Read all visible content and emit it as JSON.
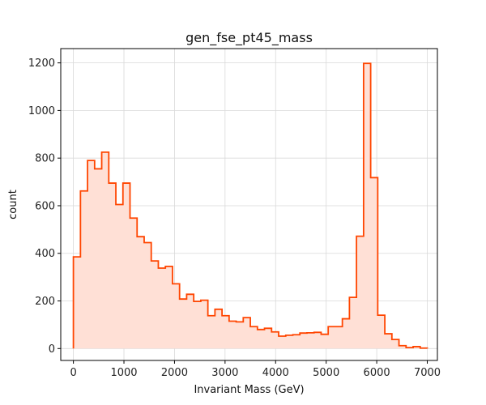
{
  "chart_data": {
    "type": "histogram",
    "title": "gen_fse_pt45_mass",
    "xlabel": "Invariant Mass (GeV)",
    "ylabel": "count",
    "xlim": [
      -250,
      7200
    ],
    "ylim": [
      -50,
      1260
    ],
    "xticks": [
      0,
      1000,
      2000,
      3000,
      4000,
      5000,
      6000,
      7000
    ],
    "yticks": [
      0,
      200,
      400,
      600,
      800,
      1000,
      1200
    ],
    "grid": true,
    "line_color": "#ff4500",
    "fill_color": "#ffe0d6",
    "bin_start": 0,
    "bin_width": 140,
    "counts": [
      385,
      662,
      790,
      755,
      825,
      695,
      605,
      695,
      548,
      470,
      445,
      368,
      338,
      345,
      272,
      208,
      228,
      198,
      203,
      138,
      165,
      138,
      115,
      112,
      130,
      92,
      80,
      85,
      70,
      52,
      56,
      58,
      65,
      66,
      68,
      60,
      92,
      92,
      125,
      215,
      472,
      1198,
      718,
      140,
      62,
      38,
      12,
      4,
      8,
      2
    ]
  }
}
